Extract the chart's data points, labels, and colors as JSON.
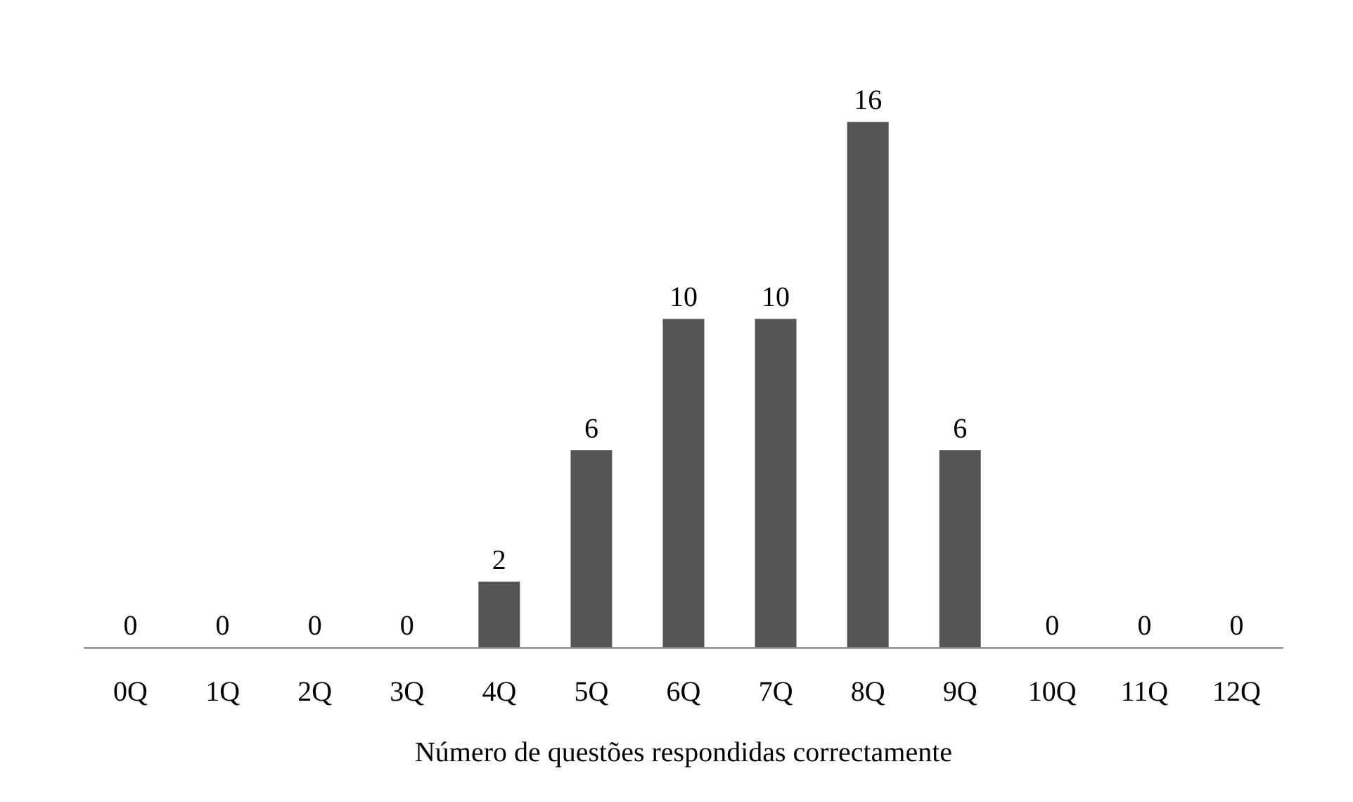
{
  "chart_data": {
    "type": "bar",
    "xlabel": "Número de questões respondidas correctamente",
    "categories": [
      "0Q",
      "1Q",
      "2Q",
      "3Q",
      "4Q",
      "5Q",
      "6Q",
      "7Q",
      "8Q",
      "9Q",
      "10Q",
      "11Q",
      "12Q"
    ],
    "values": [
      0,
      0,
      0,
      0,
      2,
      6,
      10,
      10,
      16,
      6,
      0,
      0,
      0
    ],
    "color": "#555555",
    "data_labels": true,
    "grid": false,
    "tick_labels": "x"
  }
}
